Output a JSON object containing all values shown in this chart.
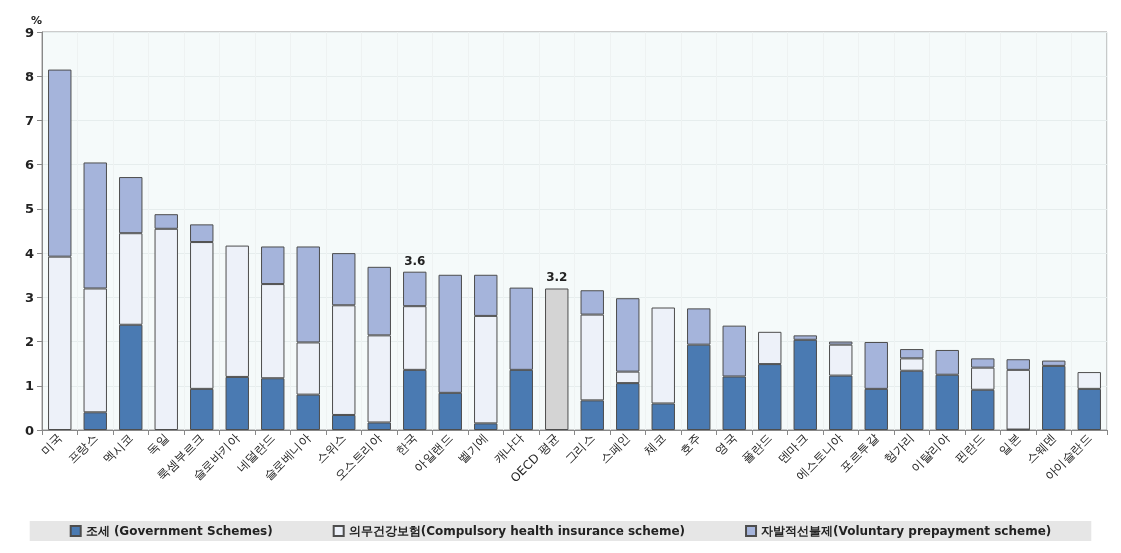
{
  "chart_data": {
    "type": "bar",
    "stacked": true,
    "ylabel": "%",
    "categories": [
      "미국",
      "프랑스",
      "멕시코",
      "독일",
      "룩셈부르크",
      "슬로바키아",
      "네덜란드",
      "슬로베니아",
      "스위스",
      "오스트리아",
      "한국",
      "아일랜드",
      "벨기에",
      "캐나다",
      "OECD 평균",
      "그리스",
      "스페인",
      "체코",
      "호주",
      "영국",
      "폴란드",
      "덴마크",
      "에스토니아",
      "포르투갈",
      "헝가리",
      "이탈리아",
      "핀란드",
      "일본",
      "스웨덴",
      "아이슬란드"
    ],
    "series": [
      {
        "name": "조세 (Government Schemes)",
        "color": "#4a7ab2",
        "values": [
          0,
          0.4,
          2.38,
          0,
          0.93,
          1.2,
          1.17,
          0.8,
          0.34,
          0.17,
          1.36,
          0.84,
          0.15,
          1.36,
          null,
          0.67,
          1.06,
          0.6,
          1.93,
          1.21,
          1.49,
          2.04,
          1.23,
          0.93,
          1.34,
          1.25,
          0.91,
          0.01,
          1.45,
          0.93
        ]
      },
      {
        "name": "의무건강보험(Compulsory health insurance scheme)",
        "color": "#edf1f9",
        "values": [
          3.92,
          2.8,
          2.07,
          4.55,
          3.32,
          2.97,
          2.13,
          1.18,
          2.48,
          1.97,
          1.44,
          0,
          2.43,
          0,
          null,
          1.94,
          0.26,
          2.17,
          0,
          0,
          0.73,
          0,
          0.7,
          0,
          0.28,
          0,
          0.5,
          1.35,
          0,
          0.38
        ]
      },
      {
        "name": "자발적선불제(Voluntary prepayment scheme)",
        "color": "#a5b4db",
        "values": [
          4.23,
          2.85,
          1.27,
          0.33,
          0.4,
          0,
          0.85,
          2.17,
          1.18,
          1.55,
          0.78,
          2.67,
          0.93,
          1.86,
          null,
          0.55,
          1.66,
          0,
          0.82,
          1.15,
          0,
          0.1,
          0.07,
          1.06,
          0.21,
          0.56,
          0.21,
          0.24,
          0.12,
          0
        ]
      },
      {
        "color": "#d4d4d4",
        "values": [
          null,
          null,
          null,
          null,
          null,
          null,
          null,
          null,
          null,
          null,
          null,
          null,
          null,
          null,
          3.2,
          null,
          null,
          null,
          null,
          null,
          null,
          null,
          null,
          null,
          null,
          null,
          null,
          null,
          null,
          null
        ]
      }
    ],
    "totals": [
      null,
      null,
      null,
      null,
      null,
      null,
      null,
      null,
      null,
      null,
      "3.6",
      null,
      null,
      null,
      "3.2",
      null,
      null,
      null,
      null,
      null,
      null,
      null,
      null,
      null,
      null,
      null,
      null,
      null,
      null,
      null
    ],
    "ylim": [
      0,
      9
    ],
    "yticks": [
      0,
      1,
      2,
      3,
      4,
      5,
      6,
      7,
      8,
      9
    ],
    "grid": true,
    "legend": "bottom"
  }
}
